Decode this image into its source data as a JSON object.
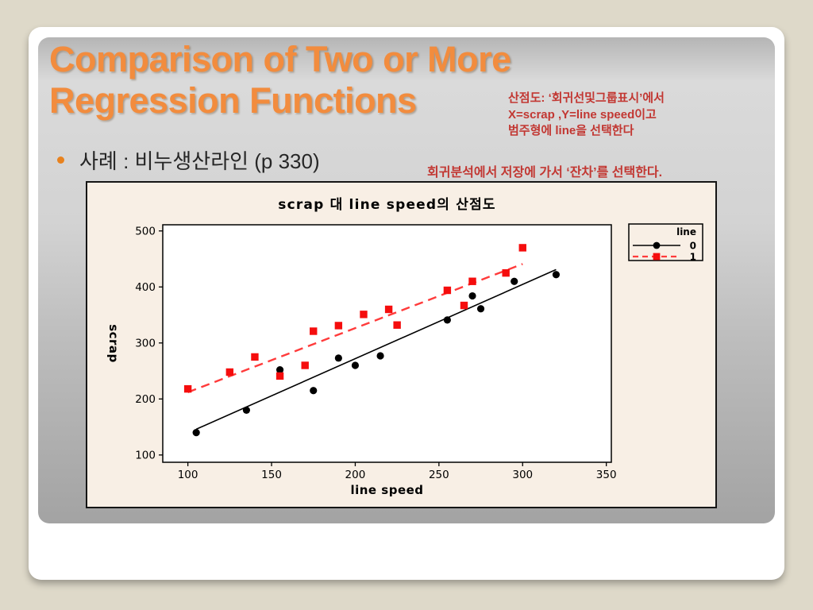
{
  "slide": {
    "title": {
      "line1": "Comparison of Two or More",
      "line2": "Regression Functions",
      "color": "#F28C3E"
    },
    "bullet": {
      "marker": "•",
      "marker_color": "#E8821E",
      "text": "사례 : 비누생산라인 (p 330)"
    },
    "annotations": {
      "scatter_steps": {
        "color": "#C23732",
        "lines": [
          "산점도: ‘회귀선및그룹표시’에서",
          "X=scrap ,Y=line speed이고",
          "범주형에 line을 선택한다"
        ]
      },
      "residual_step": {
        "color": "#C23732",
        "text": "회귀분석에서 저장에 가서 ‘잔차’를 선택한다."
      }
    }
  },
  "chart_data": {
    "type": "scatter",
    "title": "scrap 대 line speed의 산점도",
    "xlabel": "line speed",
    "ylabel": "scrap",
    "x_range": [
      85,
      353
    ],
    "y_range": [
      87,
      511
    ],
    "xticks": [
      100,
      150,
      200,
      250,
      300,
      350
    ],
    "yticks": [
      100,
      200,
      300,
      400,
      500
    ],
    "grid": false,
    "background": "#F8EFE5",
    "plot_background": "#FFFFFF",
    "legend": {
      "title": "line",
      "position": "top-right",
      "entries": [
        "0",
        "1"
      ]
    },
    "series": [
      {
        "name": "0",
        "marker": "circle",
        "color": "#000000",
        "line": "solid",
        "line_color": "#000000",
        "points": [
          [
            105,
            140
          ],
          [
            135,
            180
          ],
          [
            155,
            252
          ],
          [
            175,
            215
          ],
          [
            190,
            273
          ],
          [
            200,
            260
          ],
          [
            215,
            277
          ],
          [
            255,
            341
          ],
          [
            270,
            384
          ],
          [
            275,
            361
          ],
          [
            295,
            410
          ],
          [
            320,
            422
          ]
        ],
        "fit_line": {
          "x": [
            105,
            320
          ],
          "y": [
            146,
            431
          ]
        }
      },
      {
        "name": "1",
        "marker": "square",
        "color": "#F50D0D",
        "line": "dashed",
        "line_color": "#FF3B3B",
        "points": [
          [
            100,
            218
          ],
          [
            125,
            248
          ],
          [
            140,
            275
          ],
          [
            155,
            241
          ],
          [
            170,
            260
          ],
          [
            175,
            321
          ],
          [
            190,
            331
          ],
          [
            205,
            351
          ],
          [
            220,
            360
          ],
          [
            225,
            332
          ],
          [
            255,
            394
          ],
          [
            265,
            367
          ],
          [
            270,
            410
          ],
          [
            290,
            425
          ],
          [
            300,
            470
          ]
        ],
        "fit_line": {
          "x": [
            100,
            300
          ],
          "y": [
            212,
            441
          ]
        }
      }
    ]
  }
}
